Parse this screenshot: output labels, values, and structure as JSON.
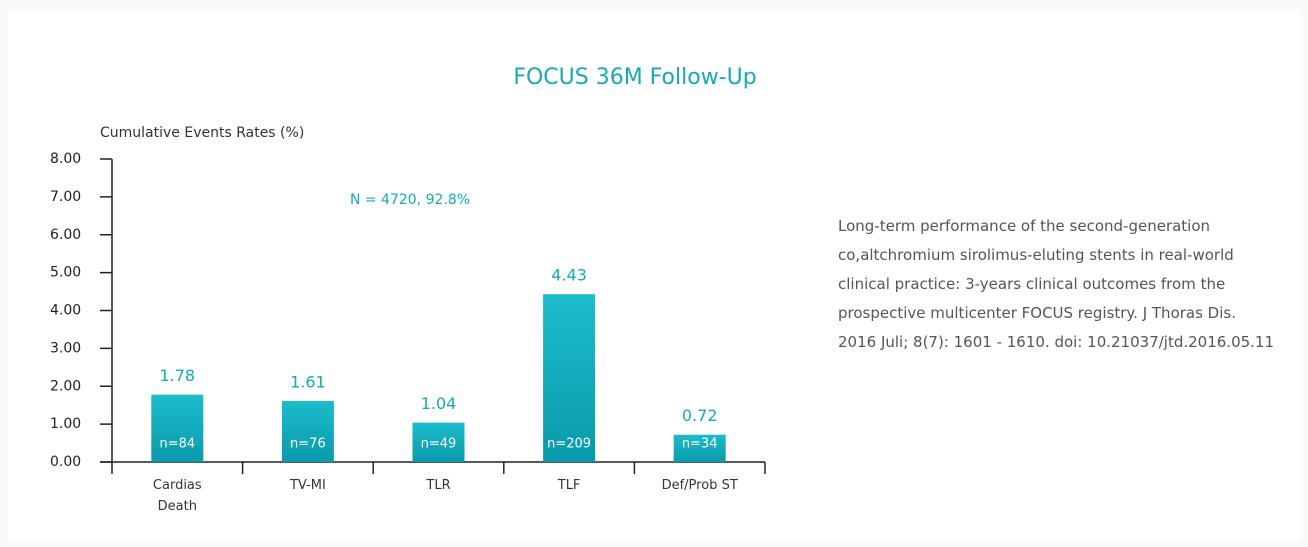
{
  "chart_data": {
    "type": "bar",
    "title": "FOCUS 36M Follow-Up",
    "y_label": "Cumulative Events Rates (%)",
    "annotation": "N = 4720, 92.8%",
    "categories": [
      "Cardias Death",
      "TV-MI",
      "TLR",
      "TLF",
      "Def/Prob ST"
    ],
    "values": [
      1.78,
      1.61,
      1.04,
      4.43,
      0.72
    ],
    "count_labels": [
      "n=84",
      "n=76",
      "n=49",
      "n=209",
      "n=34"
    ],
    "color": "#13adbd",
    "ylim": [
      0,
      8
    ],
    "yticks": [
      {
        "value": 0,
        "label": "0.00"
      },
      {
        "value": 1,
        "label": "1.00"
      },
      {
        "value": 2,
        "label": "2.00"
      },
      {
        "value": 3,
        "label": "3.00"
      },
      {
        "value": 4,
        "label": "4.00"
      },
      {
        "value": 5,
        "label": "5.00"
      },
      {
        "value": 6,
        "label": "6.00"
      },
      {
        "value": 7,
        "label": "7.00"
      },
      {
        "value": 8,
        "label": "8.00"
      }
    ],
    "description": "Long-term performance of the second-generation co,altchromium sirolimus-eluting stents in real-world clinical practice: 3-years clinical outcomes from the prospective multicenter FOCUS registry. J Thoras Dis. 2016 Juli; 8(7): 1601 - 1610. doi: 10.21037/jtd.2016.05.11"
  }
}
